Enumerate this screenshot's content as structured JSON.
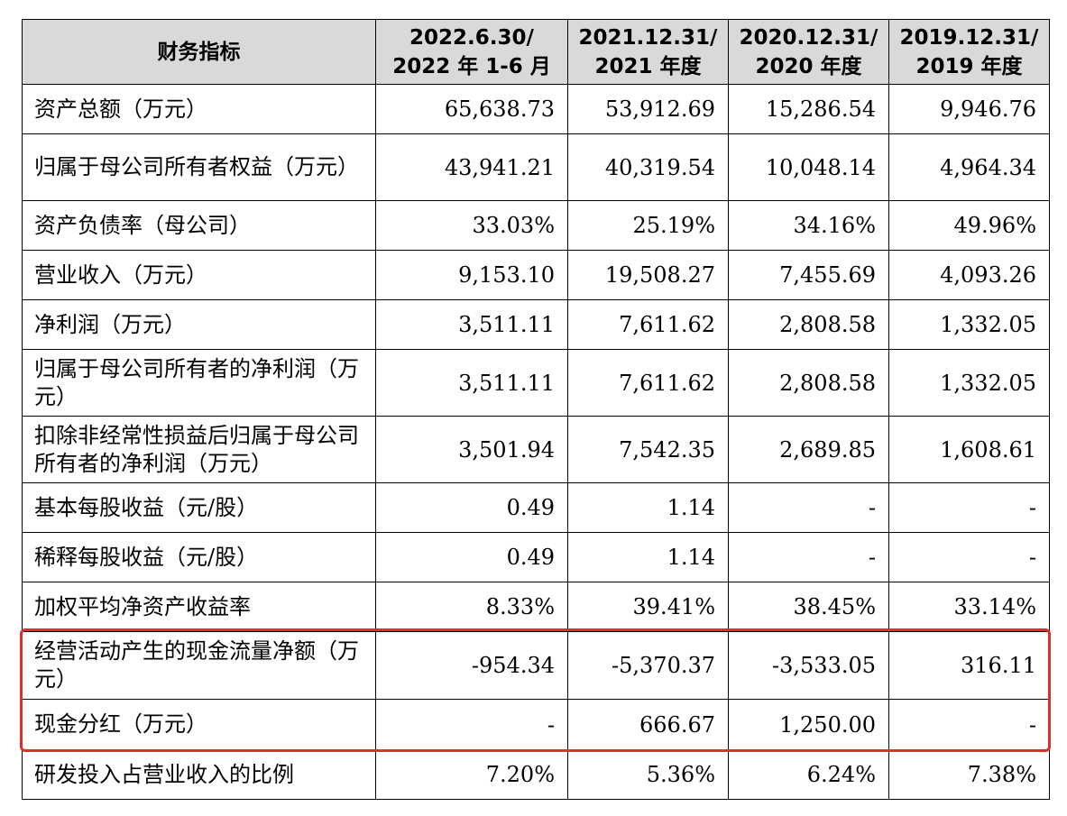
{
  "table": {
    "headers": [
      {
        "line1": "财务指标",
        "line2": ""
      },
      {
        "line1": "2022.6.30/",
        "line2": "2022 年 1-6 月"
      },
      {
        "line1": "2021.12.31/",
        "line2": "2021 年度"
      },
      {
        "line1": "2020.12.31/",
        "line2": "2020 年度"
      },
      {
        "line1": "2019.12.31/",
        "line2": "2019 年度"
      }
    ],
    "rows": [
      {
        "label": "资产总额（万元）",
        "values": [
          "65,638.73",
          "53,912.69",
          "15,286.54",
          "9,946.76"
        ]
      },
      {
        "label": "归属于母公司所有者权益（万元）",
        "values": [
          "43,941.21",
          "40,319.54",
          "10,048.14",
          "4,964.34"
        ]
      },
      {
        "label": "资产负债率（母公司）",
        "values": [
          "33.03%",
          "25.19%",
          "34.16%",
          "49.96%"
        ]
      },
      {
        "label": "营业收入（万元）",
        "values": [
          "9,153.10",
          "19,508.27",
          "7,455.69",
          "4,093.26"
        ]
      },
      {
        "label": "净利润（万元）",
        "values": [
          "3,511.11",
          "7,611.62",
          "2,808.58",
          "1,332.05"
        ]
      },
      {
        "label": "归属于母公司所有者的净利润（万元）",
        "values": [
          "3,511.11",
          "7,611.62",
          "2,808.58",
          "1,332.05"
        ]
      },
      {
        "label": "扣除非经常性损益后归属于母公司所有者的净利润（万元）",
        "values": [
          "3,501.94",
          "7,542.35",
          "2,689.85",
          "1,608.61"
        ]
      },
      {
        "label": "基本每股收益（元/股）",
        "values": [
          "0.49",
          "1.14",
          "-",
          "-"
        ]
      },
      {
        "label": "稀释每股收益（元/股）",
        "values": [
          "0.49",
          "1.14",
          "-",
          "-"
        ]
      },
      {
        "label": "加权平均净资产收益率",
        "values": [
          "8.33%",
          "39.41%",
          "38.45%",
          "33.14%"
        ]
      },
      {
        "label": "经营活动产生的现金流量净额（万元）",
        "values": [
          "-954.34",
          "-5,370.37",
          "-3,533.05",
          "316.11"
        ]
      },
      {
        "label": "现金分红（万元）",
        "values": [
          "-",
          "666.67",
          "1,250.00",
          "-"
        ]
      },
      {
        "label": "研发投入占营业收入的比例",
        "values": [
          "7.20%",
          "5.36%",
          "6.24%",
          "7.38%"
        ]
      }
    ]
  },
  "highlight": {
    "color": "#d9312b",
    "rows": [
      10,
      11
    ]
  }
}
